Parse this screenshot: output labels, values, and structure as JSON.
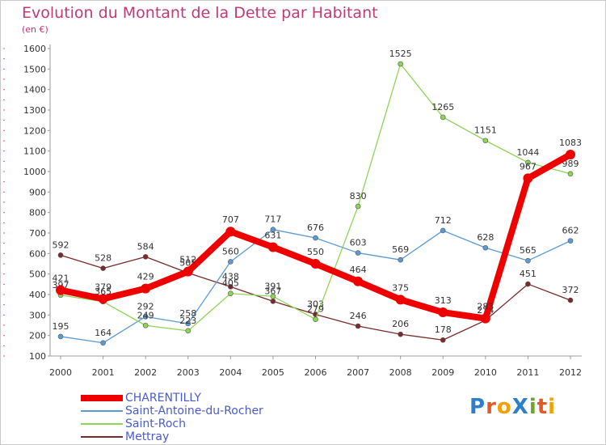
{
  "header": {
    "title": "Evolution du Montant de la Dette par Habitant",
    "subtitle": "(en €)"
  },
  "logo": {
    "text": "ProXiti",
    "letters": [
      {
        "ch": "P",
        "color": "#2d7fc7"
      },
      {
        "ch": "r",
        "color": "#e05a2a"
      },
      {
        "ch": "o",
        "color": "#f2a200"
      },
      {
        "ch": "X",
        "color": "#2d7fc7"
      },
      {
        "ch": "i",
        "color": "#6aa82a"
      },
      {
        "ch": "t",
        "color": "#e05a2a"
      },
      {
        "ch": "i",
        "color": "#f2a200"
      }
    ]
  },
  "chart_data": {
    "type": "line",
    "title": "Evolution du Montant de la Dette par Habitant",
    "subtitle": "(en €)",
    "x": [
      2000,
      2001,
      2002,
      2003,
      2004,
      2005,
      2006,
      2007,
      2008,
      2009,
      2010,
      2011,
      2012
    ],
    "ylim": [
      100,
      1600
    ],
    "yticks": [
      100,
      200,
      300,
      400,
      500,
      600,
      700,
      800,
      900,
      1000,
      1100,
      1200,
      1300,
      1400,
      1500,
      1600
    ],
    "grid": false,
    "legend": "bottom-left",
    "series": [
      {
        "name": "Mettray",
        "color": "#7a2a2a",
        "values": [
          592,
          528,
          584,
          505,
          438,
          367,
          303,
          246,
          206,
          178,
          274,
          451,
          372
        ]
      },
      {
        "name": "Saint-Antoine-du-Rocher",
        "color": "#5b9bd5",
        "values": [
          195,
          164,
          292,
          258,
          560,
          717,
          676,
          603,
          569,
          712,
          628,
          565,
          662
        ]
      },
      {
        "name": "Saint-Roch",
        "color": "#8ed455",
        "values": [
          397,
          365,
          249,
          223,
          405,
          391,
          279,
          830,
          1525,
          1265,
          1151,
          1044,
          989
        ]
      },
      {
        "name": "CHARENTILLY",
        "color": "#ee0000",
        "values": [
          421,
          379,
          429,
          512,
          707,
          631,
          550,
          464,
          375,
          313,
          283,
          967,
          1083
        ]
      }
    ],
    "legend_order": [
      "CHARENTILLY",
      "Saint-Antoine-du-Rocher",
      "Saint-Roch",
      "Mettray"
    ]
  }
}
